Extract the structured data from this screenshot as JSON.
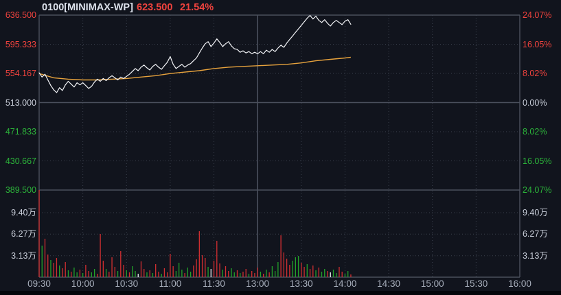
{
  "header": {
    "symbol": "0100[MINIMAX-WP]",
    "price": "623.500",
    "change_pct": "21.54%"
  },
  "colors": {
    "bg": "#11141d",
    "up": "#f0433e",
    "down": "#2cb43a",
    "neutral": "#c9ced9",
    "time_text": "#a9b0bd",
    "price_line": "#f4f5f8",
    "avg_line": "#e8a33d",
    "bar_up": "#d32f31",
    "bar_down": "#23a22a",
    "bar_flat": "#eceef2",
    "grid": "#3b404d",
    "grid_strong": "#4b505d"
  },
  "axes": {
    "price_left": [
      {
        "text": "636.500",
        "tone": "up"
      },
      {
        "text": "595.333",
        "tone": "up"
      },
      {
        "text": "554.167",
        "tone": "up"
      },
      {
        "text": "513.000",
        "tone": "neutral"
      },
      {
        "text": "471.833",
        "tone": "down"
      },
      {
        "text": "430.667",
        "tone": "down"
      },
      {
        "text": "389.500",
        "tone": "down"
      }
    ],
    "pct_right": [
      {
        "text": "24.07%",
        "tone": "up"
      },
      {
        "text": "16.05%",
        "tone": "up"
      },
      {
        "text": "8.02%",
        "tone": "up"
      },
      {
        "text": "0.00%",
        "tone": "neutral"
      },
      {
        "text": "8.02%",
        "tone": "down"
      },
      {
        "text": "16.05%",
        "tone": "down"
      },
      {
        "text": "24.07%",
        "tone": "down"
      }
    ],
    "volume_left": [
      "9.40万",
      "6.27万",
      "3.13万"
    ],
    "volume_right": [
      "9.40万",
      "6.27万",
      "3.13万"
    ],
    "time": [
      "09:30",
      "10:00",
      "10:30",
      "11:00",
      "11:30",
      "13:00",
      "13:30",
      "14:00",
      "14:30",
      "15:00",
      "15:30",
      "16:00"
    ]
  },
  "chart_data": {
    "type": "line",
    "subtype": "intraday-price-with-volume",
    "title": "0100[MINIMAX-WP]",
    "last_price": 623.5,
    "change_pct": 21.54,
    "prev_close": 513.0,
    "price_axis_ticks": [
      636.5,
      595.333,
      554.167,
      513.0,
      471.833,
      430.667,
      389.5
    ],
    "pct_axis_ticks": [
      24.07,
      16.05,
      8.02,
      0.0,
      -8.02,
      -16.05,
      -24.07
    ],
    "volume_axis_ticks_wan": [
      9.4,
      6.27,
      3.13
    ],
    "volume_panel_max_wan": 12.7,
    "session_total_minutes": 330,
    "time_labels": [
      "09:30",
      "10:00",
      "10:30",
      "11:00",
      "11:30",
      "13:00",
      "13:30",
      "14:00",
      "14:30",
      "15:00",
      "15:30",
      "16:00"
    ],
    "grid": "dotted",
    "price_series": {
      "name": "price",
      "start_minute": 0,
      "step_minutes": 2,
      "values": [
        555,
        549,
        553,
        545,
        537,
        531,
        527,
        534,
        530,
        538,
        543,
        539,
        535,
        541,
        538,
        541,
        537,
        533,
        536,
        542,
        546,
        543,
        547,
        544,
        548,
        551,
        548,
        545,
        549,
        547,
        550,
        553,
        557,
        561,
        558,
        563,
        566,
        562,
        559,
        564,
        567,
        563,
        560,
        565,
        570,
        578,
        567,
        561,
        564,
        567,
        563,
        566,
        568,
        572,
        576,
        583,
        590,
        596,
        599,
        592,
        597,
        603,
        598,
        592,
        596,
        599,
        593,
        589,
        588,
        584,
        586,
        583,
        585,
        582,
        584,
        582,
        585,
        582,
        587,
        584,
        588,
        585,
        590,
        594,
        591,
        597,
        602,
        607,
        612,
        617,
        622,
        627,
        632,
        636,
        631,
        635,
        629,
        626,
        630,
        625,
        621,
        626,
        629,
        626,
        623,
        628,
        630,
        623.5
      ]
    },
    "avg_series": {
      "name": "average-price",
      "minutes": [
        0,
        10,
        20,
        30,
        40,
        50,
        60,
        70,
        80,
        90,
        100,
        110,
        120,
        130,
        140,
        150,
        160,
        170,
        180,
        190,
        200,
        210,
        214
      ],
      "values": [
        554,
        548,
        546,
        545,
        545,
        546,
        547,
        549,
        551,
        554,
        556,
        558,
        561,
        563,
        564,
        565,
        566,
        567,
        569,
        572,
        574,
        576,
        577
      ]
    },
    "volume_series": {
      "name": "volume",
      "unit": "万",
      "start_minute": 0,
      "step_minutes": 2,
      "bars": [
        [
          12.7,
          "r"
        ],
        [
          4.6,
          "g"
        ],
        [
          5.6,
          "r"
        ],
        [
          3.3,
          "r"
        ],
        [
          2.5,
          "g"
        ],
        [
          2.1,
          "r"
        ],
        [
          2.8,
          "r"
        ],
        [
          1.7,
          "g"
        ],
        [
          1.3,
          "r"
        ],
        [
          2.2,
          "r"
        ],
        [
          1.0,
          "g"
        ],
        [
          0.8,
          "r"
        ],
        [
          1.4,
          "g"
        ],
        [
          0.7,
          "g"
        ],
        [
          1.1,
          "r"
        ],
        [
          0.6,
          "g"
        ],
        [
          1.8,
          "r"
        ],
        [
          0.9,
          "r"
        ],
        [
          0.7,
          "g"
        ],
        [
          1.2,
          "g"
        ],
        [
          0.5,
          "r"
        ],
        [
          6.3,
          "r"
        ],
        [
          2.4,
          "r"
        ],
        [
          1.2,
          "g"
        ],
        [
          0.8,
          "r"
        ],
        [
          2.9,
          "r"
        ],
        [
          1.5,
          "r"
        ],
        [
          0.9,
          "g"
        ],
        [
          3.8,
          "r"
        ],
        [
          1.8,
          "r"
        ],
        [
          1.0,
          "g"
        ],
        [
          0.7,
          "r"
        ],
        [
          1.6,
          "g"
        ],
        [
          0.9,
          "g"
        ],
        [
          0.5,
          "w"
        ],
        [
          2.3,
          "r"
        ],
        [
          1.2,
          "r"
        ],
        [
          0.7,
          "g"
        ],
        [
          1.0,
          "r"
        ],
        [
          0.6,
          "g"
        ],
        [
          1.9,
          "r"
        ],
        [
          0.8,
          "r"
        ],
        [
          0.5,
          "g"
        ],
        [
          1.3,
          "r"
        ],
        [
          0.7,
          "r"
        ],
        [
          3.4,
          "r"
        ],
        [
          1.6,
          "r"
        ],
        [
          0.9,
          "g"
        ],
        [
          2.1,
          "g"
        ],
        [
          1.1,
          "g"
        ],
        [
          0.6,
          "r"
        ],
        [
          1.4,
          "g"
        ],
        [
          0.8,
          "g"
        ],
        [
          1.7,
          "r"
        ],
        [
          2.6,
          "r"
        ],
        [
          6.7,
          "r"
        ],
        [
          3.2,
          "r"
        ],
        [
          2.8,
          "r"
        ],
        [
          1.5,
          "g"
        ],
        [
          1.2,
          "w"
        ],
        [
          2.4,
          "r"
        ],
        [
          5.3,
          "r"
        ],
        [
          2.0,
          "r"
        ],
        [
          1.1,
          "g"
        ],
        [
          1.6,
          "r"
        ],
        [
          0.9,
          "r"
        ],
        [
          1.3,
          "g"
        ],
        [
          0.7,
          "g"
        ],
        [
          1.0,
          "r"
        ],
        [
          0.6,
          "g"
        ],
        [
          0.8,
          "r"
        ],
        [
          1.2,
          "r"
        ],
        [
          0.5,
          "g"
        ],
        [
          0.9,
          "r"
        ],
        [
          0.6,
          "r"
        ],
        [
          1.4,
          "r"
        ],
        [
          0.8,
          "g"
        ],
        [
          0.5,
          "r"
        ],
        [
          1.1,
          "g"
        ],
        [
          0.7,
          "r"
        ],
        [
          1.6,
          "g"
        ],
        [
          0.9,
          "g"
        ],
        [
          2.2,
          "g"
        ],
        [
          6.1,
          "r"
        ],
        [
          3.6,
          "r"
        ],
        [
          2.7,
          "r"
        ],
        [
          1.8,
          "r"
        ],
        [
          2.4,
          "g"
        ],
        [
          2.9,
          "g"
        ],
        [
          3.1,
          "g"
        ],
        [
          2.1,
          "r"
        ],
        [
          1.5,
          "r"
        ],
        [
          1.9,
          "g"
        ],
        [
          1.2,
          "r"
        ],
        [
          1.7,
          "r"
        ],
        [
          1.0,
          "g"
        ],
        [
          1.4,
          "r"
        ],
        [
          0.8,
          "g"
        ],
        [
          1.2,
          "g"
        ],
        [
          0.9,
          "r"
        ],
        [
          0.7,
          "w"
        ],
        [
          1.1,
          "g"
        ],
        [
          0.6,
          "g"
        ],
        [
          1.5,
          "r"
        ],
        [
          0.8,
          "r"
        ],
        [
          0.5,
          "g"
        ],
        [
          0.9,
          "g"
        ],
        [
          0.4,
          "r"
        ]
      ]
    }
  }
}
